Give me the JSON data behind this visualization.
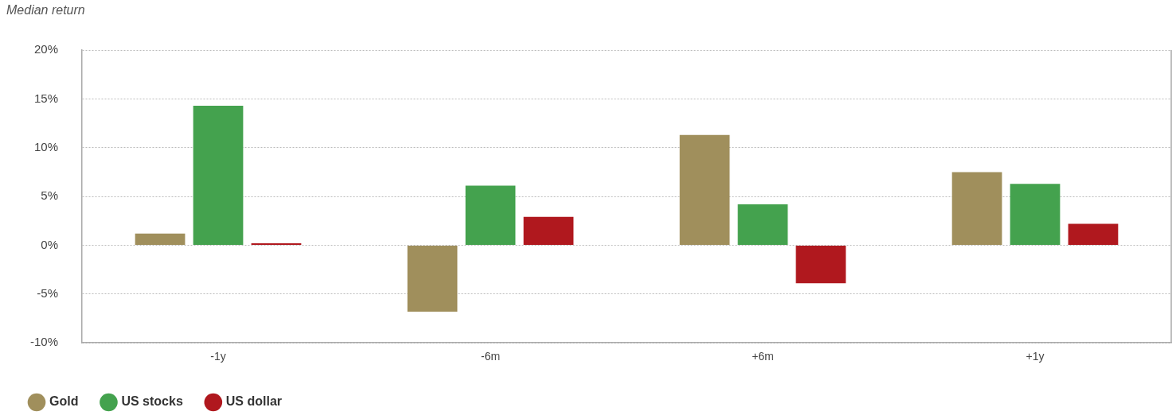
{
  "chart_data": {
    "type": "bar",
    "ylabel": "Median return",
    "categories": [
      "-1y",
      "-6m",
      "+6m",
      "+1y"
    ],
    "series": [
      {
        "name": "Gold",
        "color": "#a08f5c",
        "values": [
          1.2,
          -6.8,
          11.3,
          7.5
        ]
      },
      {
        "name": "US stocks",
        "color": "#44a24e",
        "values": [
          14.3,
          6.1,
          4.2,
          6.3
        ]
      },
      {
        "name": "US dollar",
        "color": "#b0181e",
        "values": [
          0.2,
          2.9,
          -3.9,
          2.2
        ]
      }
    ],
    "ylim": [
      -10,
      20
    ],
    "yticks": [
      {
        "value": -10,
        "label": "-10%"
      },
      {
        "value": -5,
        "label": "-5%"
      },
      {
        "value": 0,
        "label": "0%"
      },
      {
        "value": 5,
        "label": "5%"
      },
      {
        "value": 10,
        "label": "10%"
      },
      {
        "value": 15,
        "label": "15%"
      },
      {
        "value": 20,
        "label": "20%"
      }
    ],
    "grid": "y",
    "legend": "bottom left"
  }
}
